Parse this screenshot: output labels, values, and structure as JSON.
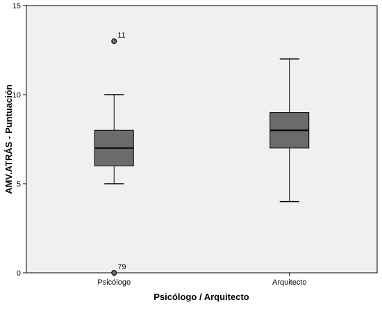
{
  "chart_data": {
    "type": "boxplot",
    "xlabel": "Psicólogo / Arquitecto",
    "ylabel": "AMV.ATRÁS - Puntuación",
    "ylim": [
      0,
      15
    ],
    "yticks": [
      0,
      5,
      10,
      15
    ],
    "grid": false,
    "categories": [
      "Psicólogo",
      "Arquitecto"
    ],
    "boxes": [
      {
        "category": "Psicólogo",
        "whisker_low": 5,
        "q1": 6,
        "median": 7,
        "q3": 8,
        "whisker_high": 10,
        "outliers": [
          {
            "label": "11",
            "value": 13
          },
          {
            "label": "79",
            "value": 0
          }
        ]
      },
      {
        "category": "Arquitecto",
        "whisker_low": 4,
        "q1": 7,
        "median": 8,
        "q3": 9,
        "whisker_high": 12,
        "outliers": []
      }
    ],
    "colors": {
      "plot_background": "#f0f0f0",
      "box_fill": "#6b6b6b",
      "lines": "#000000"
    }
  }
}
